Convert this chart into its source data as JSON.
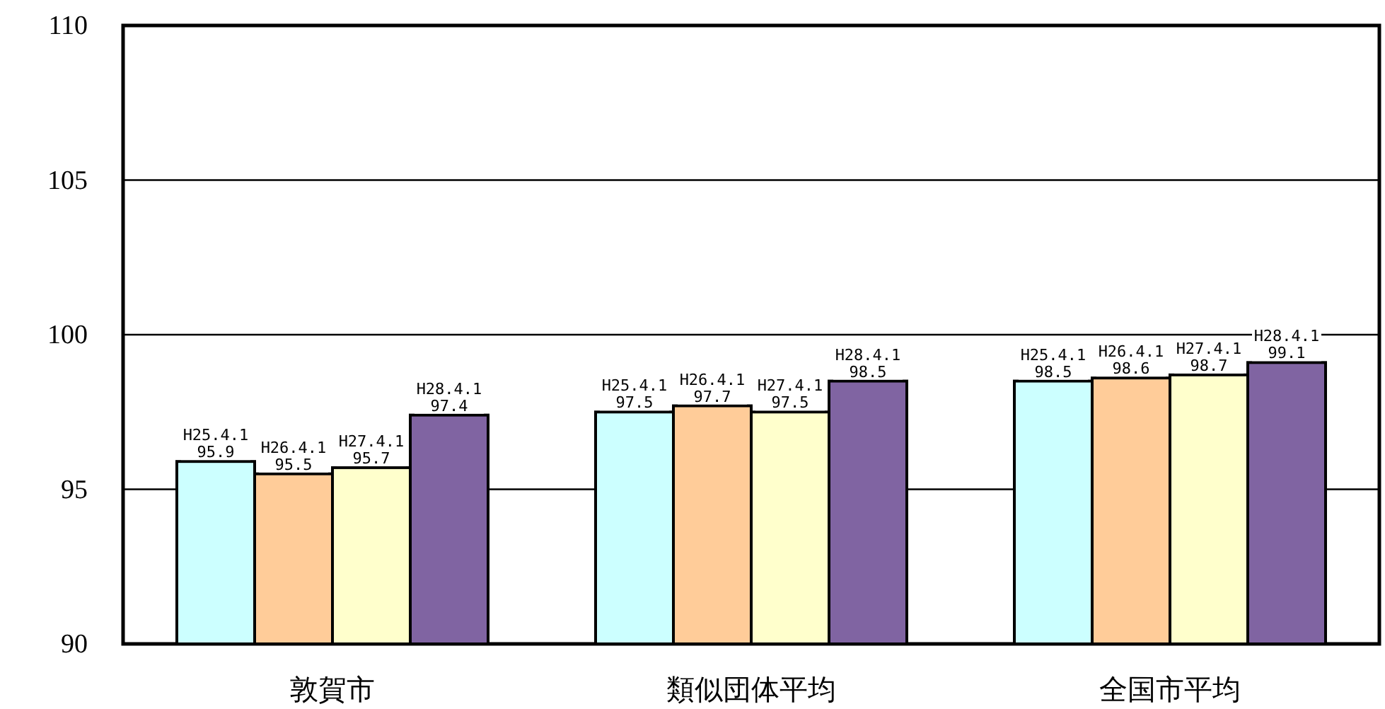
{
  "chart_data": {
    "type": "bar",
    "categories": [
      "敦賀市",
      "類似団体平均",
      "全国市平均"
    ],
    "series": [
      {
        "name": "H25.4.1",
        "color": "#ccffff",
        "values": [
          95.9,
          97.5,
          98.5
        ]
      },
      {
        "name": "H26.4.1",
        "color": "#ffcc99",
        "values": [
          95.5,
          97.7,
          98.6
        ]
      },
      {
        "name": "H27.4.1",
        "color": "#ffffcc",
        "values": [
          95.7,
          97.5,
          98.7
        ]
      },
      {
        "name": "H28.4.1",
        "color": "#8064a2",
        "values": [
          97.4,
          98.5,
          99.1
        ]
      }
    ],
    "ylim": [
      90,
      110
    ],
    "yticks": [
      90,
      95,
      100,
      105,
      110
    ],
    "grid": "y",
    "legend": false,
    "data_labels": true
  }
}
